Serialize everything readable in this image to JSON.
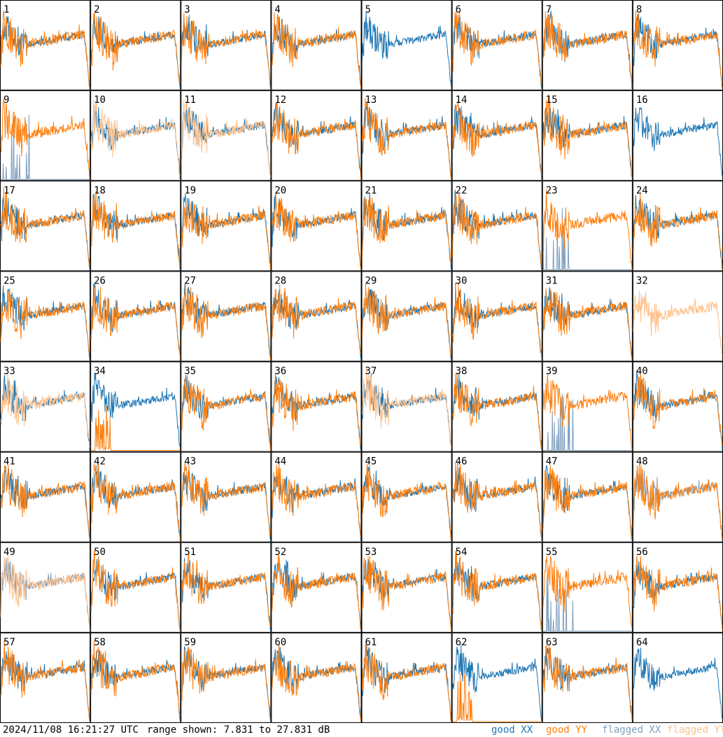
{
  "chart_data": {
    "type": "line",
    "layout": "8x8 small multiples",
    "panel_labels": [
      "1",
      "2",
      "3",
      "4",
      "5",
      "6",
      "7",
      "8",
      "9",
      "10",
      "11",
      "12",
      "13",
      "14",
      "15",
      "16",
      "17",
      "18",
      "19",
      "20",
      "21",
      "22",
      "23",
      "24",
      "25",
      "26",
      "27",
      "28",
      "29",
      "30",
      "31",
      "32",
      "33",
      "34",
      "35",
      "36",
      "37",
      "38",
      "39",
      "40",
      "41",
      "42",
      "43",
      "44",
      "45",
      "46",
      "47",
      "48",
      "49",
      "50",
      "51",
      "52",
      "53",
      "54",
      "55",
      "56",
      "57",
      "58",
      "59",
      "60",
      "61",
      "62",
      "63",
      "64"
    ],
    "ylim": [
      7.831,
      27.831
    ],
    "yunit": "dB",
    "series_colors": {
      "good XX": "#1f77b4",
      "good YY": "#ff7f0e",
      "flagged XX": "#7f9fbf",
      "flagged YY": "#ffc08a"
    },
    "panel_status": {
      "xx_flagged": [
        "9",
        "23",
        "39",
        "48",
        "49",
        "55"
      ],
      "yy_flagged": [
        "10",
        "11",
        "32",
        "33",
        "37",
        "49"
      ],
      "xx_absent": [
        "32"
      ],
      "yy_absent": [
        "5",
        "16",
        "64"
      ],
      "yy_dropout": [
        "34",
        "62"
      ]
    }
  },
  "footer": {
    "timestamp": "2024/11/08 16:21:27 UTC",
    "range_text": "range shown: 7.831 to 27.831 dB",
    "legend": [
      {
        "label": "good XX",
        "color": "#1f77b4"
      },
      {
        "label": "good YY",
        "color": "#ff7f0e"
      },
      {
        "label": "flagged XX",
        "color": "#7f9fbf"
      },
      {
        "label": "flagged YY",
        "color": "#ffc08a"
      }
    ]
  }
}
